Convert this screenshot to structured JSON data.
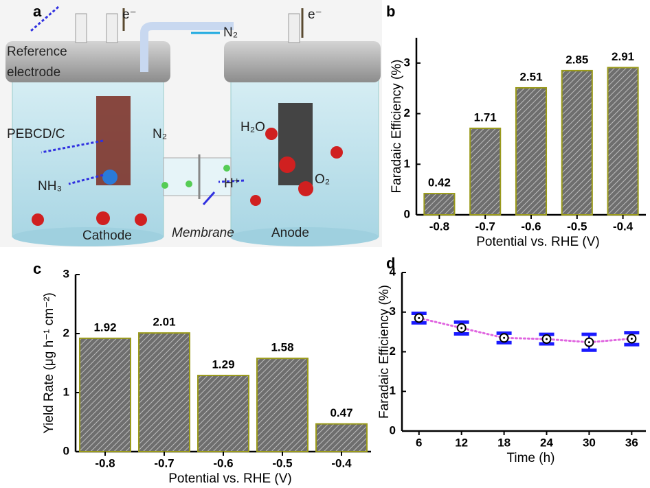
{
  "diagram": {
    "panel_label": "a",
    "reference": [
      "Reference",
      "electrode"
    ],
    "electron_left": "e⁻",
    "electron_right": "e⁻",
    "gas_in": "N₂",
    "catalyst": "PEBCD/C",
    "n2": "N₂",
    "nh3": "NH₃",
    "h2o": "H₂O",
    "proton": "H⁺",
    "o2": "O₂",
    "cathode": "Cathode",
    "membrane": "Membrane",
    "anode": "Anode"
  },
  "chart_data": [
    {
      "type": "bar",
      "panel_label": "b",
      "categories": [
        "-0.8",
        "-0.7",
        "-0.6",
        "-0.5",
        "-0.4"
      ],
      "values": [
        0.42,
        1.71,
        2.51,
        2.85,
        2.91
      ],
      "color": "#6e6e6e",
      "edgecolor": "#9a9a1a",
      "xlabel": "Potential vs. RHE (V)",
      "ylabel": "Faradaic Efficiency (%)",
      "ylim": [
        0,
        3.5
      ],
      "yticks": [
        0,
        1,
        2,
        3
      ]
    },
    {
      "type": "bar",
      "panel_label": "c",
      "categories": [
        "-0.8",
        "-0.7",
        "-0.6",
        "-0.5",
        "-0.4"
      ],
      "values": [
        1.92,
        2.01,
        1.29,
        1.58,
        0.47
      ],
      "color": "#6e6e6e",
      "edgecolor": "#9a9a1a",
      "xlabel": "Potential vs. RHE (V)",
      "ylabel": "Yield Rate (μg h⁻¹ cm⁻²)",
      "ylim": [
        0,
        3
      ],
      "yticks": [
        0,
        1,
        2,
        3
      ]
    },
    {
      "type": "errorline",
      "panel_label": "d",
      "x": [
        6,
        12,
        18,
        24,
        30,
        36
      ],
      "values": [
        2.85,
        2.6,
        2.35,
        2.32,
        2.24,
        2.33
      ],
      "errors": [
        0.12,
        0.15,
        0.12,
        0.12,
        0.2,
        0.15
      ],
      "color": "#e066e0",
      "errorcolor": "#1a1aff",
      "xlabel": "Time (h)",
      "ylabel": "Faradaic Efficiency (%)",
      "xlim": [
        3.6,
        38
      ],
      "xticks": [
        6,
        12,
        18,
        24,
        30,
        36
      ],
      "ylim": [
        0,
        4
      ],
      "yticks": [
        0,
        1,
        2,
        3,
        4
      ]
    }
  ]
}
